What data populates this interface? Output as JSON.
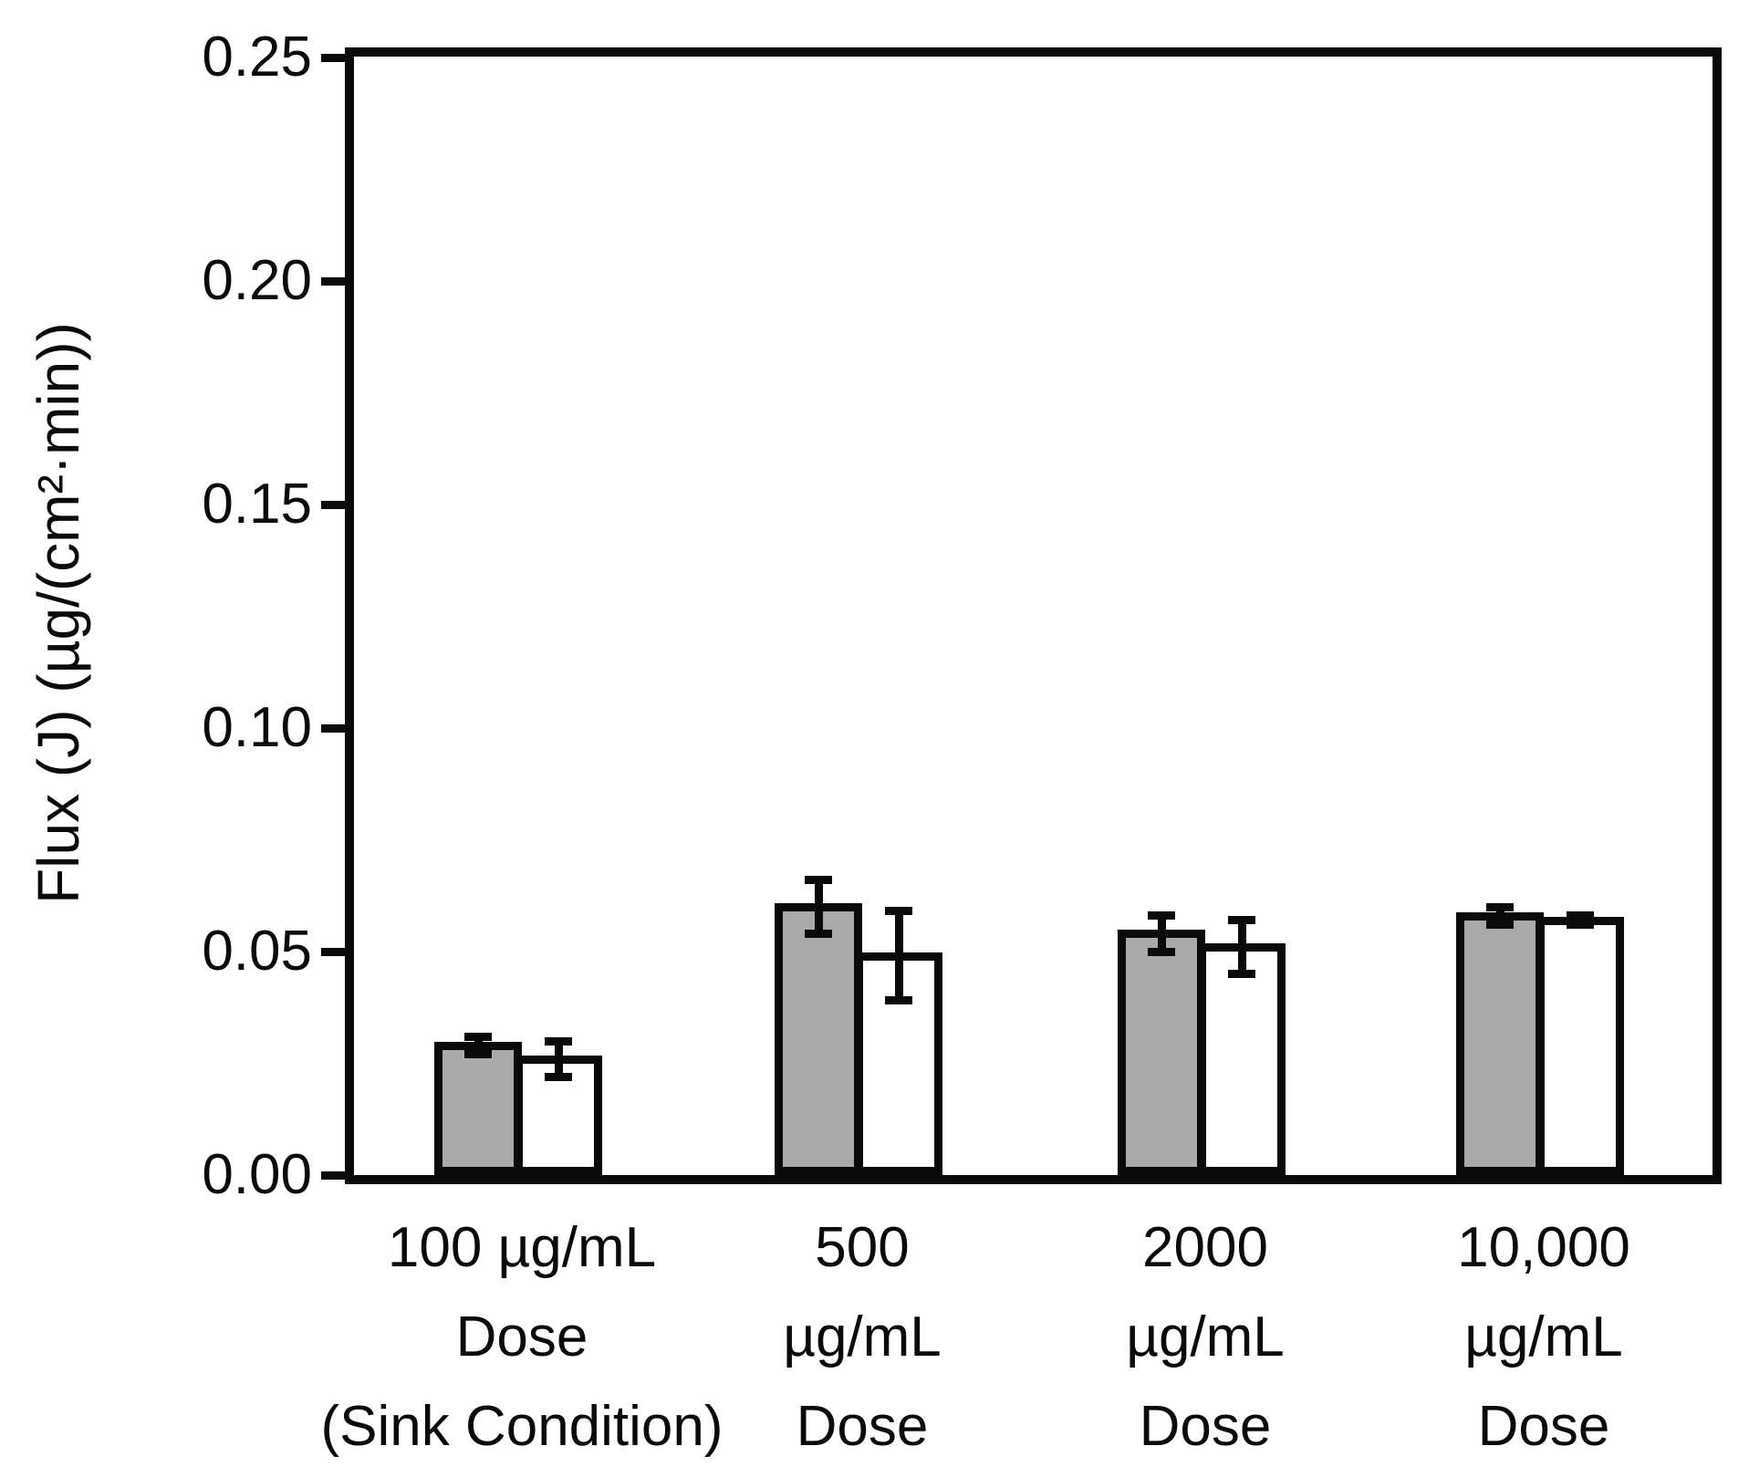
{
  "figure": {
    "background": "#ffffff",
    "line_color": "#0a0a0a"
  },
  "y_axis": {
    "title": "Flux (J) (µg/(cm²·min))",
    "ticks": [
      "0.25",
      "0.20",
      "0.15",
      "0.10",
      "0.05",
      "0.00"
    ],
    "tick_values": [
      0.25,
      0.2,
      0.15,
      0.1,
      0.05,
      0.0
    ]
  },
  "x_axis": {
    "groups": [
      {
        "lines": [
          "100 µg/mL",
          "Dose",
          "(Sink Condition)"
        ]
      },
      {
        "lines": [
          "500",
          "µg/mL",
          "Dose"
        ]
      },
      {
        "lines": [
          "2000",
          "µg/mL",
          "Dose"
        ]
      },
      {
        "lines": [
          "10,000",
          "µg/mL",
          "Dose"
        ]
      }
    ]
  },
  "chart_data": {
    "type": "bar",
    "title": "",
    "xlabel": "",
    "ylabel": "Flux (J) (µg/(cm²·min))",
    "ylim": [
      0,
      0.25
    ],
    "ytick_interval": 0.05,
    "grid": false,
    "legend_position": "none",
    "categories": [
      "100 µg/mL Dose (Sink Condition)",
      "500 µg/mL Dose",
      "2000 µg/mL Dose",
      "10,000 µg/mL Dose"
    ],
    "series": [
      {
        "name": "gray-bar",
        "fill": "#a9a9a9",
        "values": [
          0.029,
          0.06,
          0.054,
          0.058
        ],
        "errors": [
          0.002,
          0.006,
          0.004,
          0.002
        ]
      },
      {
        "name": "white-bar",
        "fill": "#ffffff",
        "values": [
          0.026,
          0.049,
          0.051,
          0.057
        ],
        "errors": [
          0.004,
          0.01,
          0.006,
          0.001
        ]
      }
    ]
  }
}
